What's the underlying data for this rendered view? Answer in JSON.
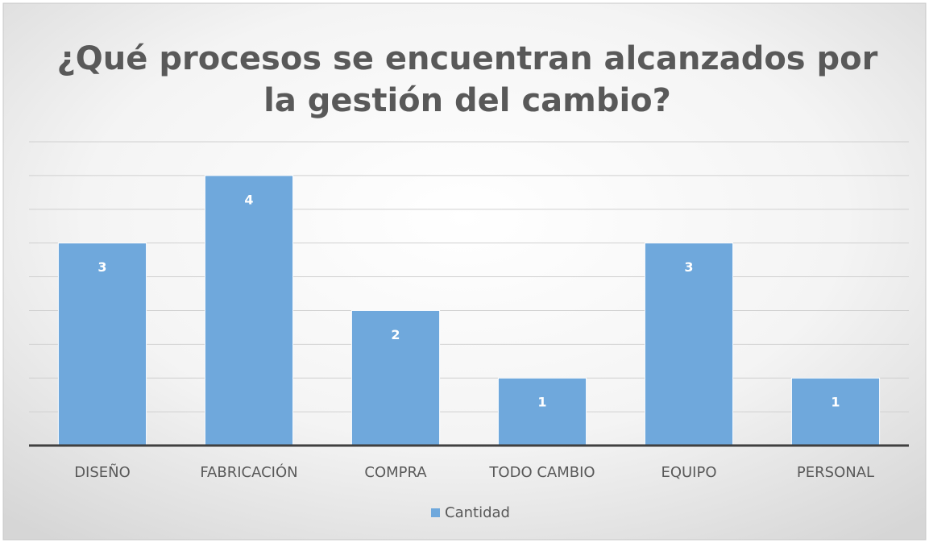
{
  "chart_data": {
    "type": "bar",
    "title": [
      "¿Qué procesos se encuentran alcanzados por",
      "la gestión del cambio?"
    ],
    "categories": [
      "DISEÑO",
      "FABRICACIÓN",
      "COMPRA",
      "TODO CAMBIO",
      "EQUIPO",
      "PERSONAL"
    ],
    "series": [
      {
        "name": "Cantidad",
        "color": "#6fa8dc",
        "values": [
          3,
          4,
          2,
          1,
          3,
          1
        ]
      }
    ],
    "ylim": [
      0,
      4.5
    ],
    "yticks": [
      0,
      0.5,
      1,
      1.5,
      2,
      2.5,
      3,
      3.5,
      4,
      4.5
    ],
    "grid": true,
    "legend": "bottom"
  }
}
